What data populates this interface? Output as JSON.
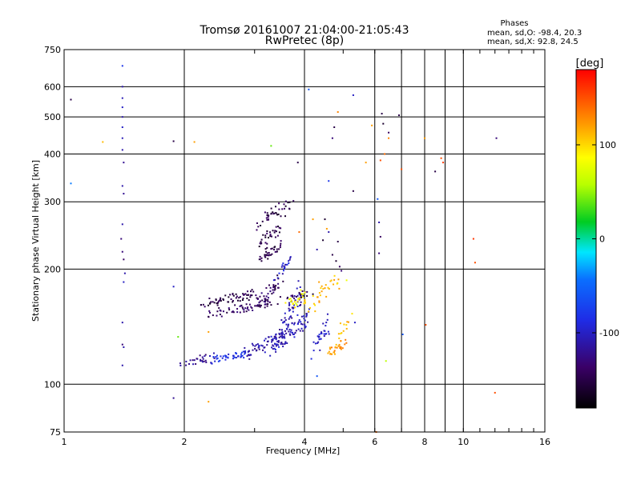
{
  "chart_data": {
    "type": "scatter",
    "title": "Tromsø 20161007 21:04:00-21:05:43",
    "subtitle": "RwPretec (8p)",
    "xlabel": "Frequency [MHz]",
    "ylabel": "Stationary phase Virtual Height [km]",
    "x_scale": "log",
    "y_scale": "log",
    "xlim": [
      1,
      16
    ],
    "ylim": [
      75,
      750
    ],
    "x_ticks": [
      1,
      2,
      4,
      6,
      8,
      10,
      16
    ],
    "x_tick_labels": [
      "1",
      "2",
      "4",
      "6",
      "8",
      "10",
      "16"
    ],
    "x_minor_gridlines": [
      7,
      9
    ],
    "y_ticks": [
      75,
      100,
      200,
      300,
      400,
      500,
      600,
      750
    ],
    "y_tick_labels": [
      "75",
      "100",
      "200",
      "300",
      "400",
      "500",
      "600",
      "750"
    ],
    "grid": true,
    "phases_label": {
      "heading": "Phases",
      "line1": "mean, sd,O: -98.4, 20.3",
      "line2": "mean, sd,X:  92.8, 24.5"
    },
    "colorbar": {
      "label": "[deg]",
      "range": [
        -180,
        180
      ],
      "ticks": [
        100,
        0,
        -100
      ],
      "tick_labels": [
        "100",
        "0",
        "-100"
      ]
    },
    "series": [
      {
        "values": [
          {
            "x": 1.4,
            "y": 680,
            "p": -80
          },
          {
            "x": 1.4,
            "y": 600,
            "p": -110
          },
          {
            "x": 1.4,
            "y": 560,
            "p": -105
          },
          {
            "x": 1.4,
            "y": 530,
            "p": -100
          },
          {
            "x": 1.4,
            "y": 500,
            "p": -110
          },
          {
            "x": 1.4,
            "y": 470,
            "p": -100
          },
          {
            "x": 1.4,
            "y": 440,
            "p": -105
          },
          {
            "x": 1.4,
            "y": 410,
            "p": -110
          },
          {
            "x": 1.41,
            "y": 380,
            "p": -120
          },
          {
            "x": 1.4,
            "y": 330,
            "p": -110
          },
          {
            "x": 1.41,
            "y": 315,
            "p": -120
          },
          {
            "x": 1.4,
            "y": 262,
            "p": -110
          },
          {
            "x": 1.39,
            "y": 240,
            "p": -130
          },
          {
            "x": 1.4,
            "y": 222,
            "p": -130
          },
          {
            "x": 1.41,
            "y": 212,
            "p": -140
          },
          {
            "x": 1.42,
            "y": 195,
            "p": -110
          },
          {
            "x": 1.41,
            "y": 185,
            "p": -100
          },
          {
            "x": 1.4,
            "y": 145,
            "p": -110
          },
          {
            "x": 1.4,
            "y": 127,
            "p": -130
          },
          {
            "x": 1.41,
            "y": 125,
            "p": -110
          },
          {
            "x": 1.4,
            "y": 112,
            "p": -110
          },
          {
            "x": 1.04,
            "y": 555,
            "p": -150
          },
          {
            "x": 1.04,
            "y": 335,
            "p": -40
          },
          {
            "x": 1.25,
            "y": 430,
            "p": 110
          },
          {
            "x": 1.88,
            "y": 432,
            "p": -150
          },
          {
            "x": 1.88,
            "y": 180,
            "p": -100
          },
          {
            "x": 1.88,
            "y": 92,
            "p": -120
          },
          {
            "x": 1.93,
            "y": 133,
            "p": 40
          },
          {
            "x": 2.3,
            "y": 90,
            "p": 120
          },
          {
            "x": 2.3,
            "y": 137,
            "p": 120
          },
          {
            "x": 2.12,
            "y": 430,
            "p": 120
          },
          {
            "x": 3.3,
            "y": 420,
            "p": 40
          },
          {
            "x": 3.85,
            "y": 380,
            "p": -150
          },
          {
            "x": 4.1,
            "y": 590,
            "p": -60
          },
          {
            "x": 4.6,
            "y": 340,
            "p": -80
          },
          {
            "x": 4.7,
            "y": 440,
            "p": -130
          },
          {
            "x": 4.75,
            "y": 470,
            "p": -150
          },
          {
            "x": 4.85,
            "y": 515,
            "p": 130
          },
          {
            "x": 5.3,
            "y": 570,
            "p": -100
          },
          {
            "x": 5.3,
            "y": 320,
            "p": -150
          },
          {
            "x": 5.7,
            "y": 380,
            "p": 120
          },
          {
            "x": 5.35,
            "y": 145,
            "p": -100
          },
          {
            "x": 4.3,
            "y": 105,
            "p": -60
          },
          {
            "x": 5.9,
            "y": 475,
            "p": 120
          },
          {
            "x": 6.25,
            "y": 510,
            "p": -150
          },
          {
            "x": 6.3,
            "y": 480,
            "p": -160
          },
          {
            "x": 6.5,
            "y": 455,
            "p": -140
          },
          {
            "x": 6.5,
            "y": 440,
            "p": 130
          },
          {
            "x": 6.35,
            "y": 400,
            "p": 140
          },
          {
            "x": 6.2,
            "y": 385,
            "p": 150
          },
          {
            "x": 6.1,
            "y": 305,
            "p": -60
          },
          {
            "x": 6.15,
            "y": 265,
            "p": -110
          },
          {
            "x": 6.2,
            "y": 243,
            "p": -140
          },
          {
            "x": 6.15,
            "y": 220,
            "p": -130
          },
          {
            "x": 6.4,
            "y": 115,
            "p": 60
          },
          {
            "x": 6.05,
            "y": 75,
            "p": 140
          },
          {
            "x": 6.9,
            "y": 505,
            "p": -150
          },
          {
            "x": 7.0,
            "y": 365,
            "p": 150
          },
          {
            "x": 7.05,
            "y": 135,
            "p": -60
          },
          {
            "x": 8.0,
            "y": 440,
            "p": 120
          },
          {
            "x": 8.05,
            "y": 143,
            "p": 150
          },
          {
            "x": 8.5,
            "y": 360,
            "p": -150
          },
          {
            "x": 8.8,
            "y": 390,
            "p": 150
          },
          {
            "x": 8.9,
            "y": 380,
            "p": 160
          },
          {
            "x": 10.6,
            "y": 240,
            "p": 160
          },
          {
            "x": 10.7,
            "y": 208,
            "p": 150
          },
          {
            "x": 12.1,
            "y": 440,
            "p": -130
          },
          {
            "x": 12.0,
            "y": 95,
            "p": 150
          },
          {
            "x": 4.5,
            "y": 270,
            "p": -160
          },
          {
            "x": 4.6,
            "y": 250,
            "p": -110
          },
          {
            "x": 4.45,
            "y": 238,
            "p": -160
          },
          {
            "x": 4.3,
            "y": 225,
            "p": -110
          },
          {
            "x": 4.2,
            "y": 270,
            "p": 120
          },
          {
            "x": 3.88,
            "y": 250,
            "p": 140
          },
          {
            "x": 4.55,
            "y": 255,
            "p": 120
          },
          {
            "x": 4.7,
            "y": 218,
            "p": -150
          },
          {
            "x": 4.8,
            "y": 210,
            "p": -160
          },
          {
            "x": 4.9,
            "y": 203,
            "p": -140
          },
          {
            "x": 4.85,
            "y": 236,
            "p": -150
          },
          {
            "x": 4.95,
            "y": 198,
            "p": -130
          },
          {
            "x": 4.2,
            "y": 172,
            "p": -160
          },
          {
            "x": 4.35,
            "y": 185,
            "p": 120
          },
          {
            "x": 5.1,
            "y": 187,
            "p": 80
          }
        ]
      }
    ],
    "clusters": [
      {
        "kind": "arc",
        "xa": 1.97,
        "xb": 2.38,
        "ya": 112,
        "yb": 118,
        "p": -120,
        "n": 28
      },
      {
        "kind": "arc",
        "xa": 2.35,
        "xb": 2.85,
        "ya": 116,
        "yb": 120,
        "p": -85,
        "n": 45
      },
      {
        "kind": "arc",
        "xa": 2.85,
        "xb": 3.6,
        "ya": 120,
        "yb": 135,
        "p": -110,
        "n": 70
      },
      {
        "kind": "arc",
        "xa": 3.3,
        "xb": 4.1,
        "ya": 125,
        "yb": 150,
        "p": -105,
        "n": 70
      },
      {
        "kind": "arc",
        "xa": 3.5,
        "xb": 3.9,
        "ya": 135,
        "yb": 175,
        "p": -110,
        "n": 50
      },
      {
        "kind": "arc",
        "xa": 2.2,
        "xb": 3.0,
        "ya": 162,
        "yb": 172,
        "p": -150,
        "n": 60
      },
      {
        "kind": "arc",
        "xa": 2.3,
        "xb": 3.5,
        "ya": 152,
        "yb": 165,
        "p": -140,
        "n": 60
      },
      {
        "kind": "arc",
        "xa": 3.0,
        "xb": 3.5,
        "ya": 162,
        "yb": 185,
        "p": -140,
        "n": 45
      },
      {
        "kind": "arc",
        "xa": 3.6,
        "xb": 4.1,
        "ya": 170,
        "yb": 172,
        "p": -140,
        "n": 20
      },
      {
        "kind": "arc",
        "xa": 3.6,
        "xb": 4.0,
        "ya": 160,
        "yb": 175,
        "p": 80,
        "n": 14
      },
      {
        "kind": "arc",
        "xa": 3.7,
        "xb": 4.0,
        "ya": 162,
        "yb": 165,
        "p": 100,
        "n": 12
      },
      {
        "kind": "arc",
        "xa": 4.1,
        "xb": 4.9,
        "ya": 160,
        "yb": 190,
        "p": 110,
        "n": 30
      },
      {
        "kind": "arc",
        "xa": 4.6,
        "xb": 5.1,
        "ya": 120,
        "yb": 130,
        "p": 120,
        "n": 30
      },
      {
        "kind": "arc",
        "xa": 4.9,
        "xb": 5.2,
        "ya": 135,
        "yb": 150,
        "p": 110,
        "n": 12
      },
      {
        "kind": "arc",
        "xa": 4.2,
        "xb": 4.6,
        "ya": 120,
        "yb": 145,
        "p": -100,
        "n": 30
      },
      {
        "kind": "arc",
        "xa": 3.1,
        "xb": 3.5,
        "ya": 215,
        "yb": 230,
        "p": -150,
        "n": 35
      },
      {
        "kind": "arc",
        "xa": 3.1,
        "xb": 3.5,
        "ya": 235,
        "yb": 260,
        "p": -150,
        "n": 30
      },
      {
        "kind": "arc",
        "xa": 3.0,
        "xb": 3.7,
        "ya": 260,
        "yb": 300,
        "p": -150,
        "n": 40
      },
      {
        "kind": "arc",
        "xa": 3.4,
        "xb": 3.7,
        "ya": 185,
        "yb": 215,
        "p": -100,
        "n": 20
      }
    ]
  }
}
